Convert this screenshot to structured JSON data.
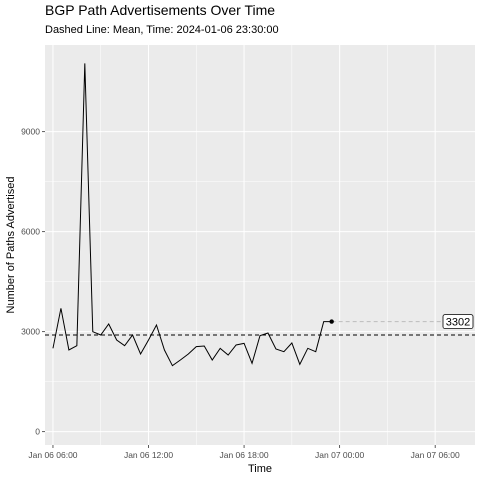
{
  "chart_data": {
    "type": "line",
    "title": "BGP Path Advertisements Over Time",
    "subtitle": "Dashed Line: Mean, Time: 2024-01-06 23:30:00",
    "xlabel": "Time",
    "ylabel": "Number of Paths Advertised",
    "x_ticks": [
      "Jan 06 06:00",
      "Jan 06 12:00",
      "Jan 06 18:00",
      "Jan 07 00:00",
      "Jan 07 06:00"
    ],
    "y_ticks": [
      "0",
      "3000",
      "6000",
      "9000"
    ],
    "xlim": [
      "2024-01-06 05:30",
      "2024-01-07 08:30"
    ],
    "ylim": [
      -400,
      11600
    ],
    "grid": true,
    "legend": "none",
    "mean": 2900,
    "last_point": {
      "x": "2024-01-06 23:30",
      "y": 3302
    },
    "callout_label": "3302",
    "series": [
      {
        "x": [
          "2024-01-06 06:00",
          "2024-01-06 06:30",
          "2024-01-06 07:00",
          "2024-01-06 07:30",
          "2024-01-06 08:00",
          "2024-01-06 08:30",
          "2024-01-06 09:00",
          "2024-01-06 09:30",
          "2024-01-06 10:00",
          "2024-01-06 10:30",
          "2024-01-06 11:00",
          "2024-01-06 11:30",
          "2024-01-06 12:00",
          "2024-01-06 12:30",
          "2024-01-06 13:00",
          "2024-01-06 13:30",
          "2024-01-06 14:00",
          "2024-01-06 14:30",
          "2024-01-06 15:00",
          "2024-01-06 15:30",
          "2024-01-06 16:00",
          "2024-01-06 16:30",
          "2024-01-06 17:00",
          "2024-01-06 17:30",
          "2024-01-06 18:00",
          "2024-01-06 18:30",
          "2024-01-06 19:00",
          "2024-01-06 19:30",
          "2024-01-06 20:00",
          "2024-01-06 20:30",
          "2024-01-06 21:00",
          "2024-01-06 21:30",
          "2024-01-06 22:00",
          "2024-01-06 22:30",
          "2024-01-06 23:00",
          "2024-01-06 23:30"
        ],
        "values": [
          2500,
          3700,
          2450,
          2580,
          11050,
          3000,
          2900,
          3230,
          2750,
          2580,
          2900,
          2330,
          2750,
          3200,
          2450,
          1980,
          2150,
          2330,
          2550,
          2570,
          2150,
          2500,
          2300,
          2600,
          2650,
          2050,
          2880,
          2960,
          2480,
          2400,
          2660,
          2020,
          2500,
          2400,
          3302,
          3302
        ]
      }
    ]
  },
  "style": {
    "panel_bg": "#ebebeb",
    "grid_major": "#ffffff",
    "line_color": "#000000",
    "mean_line_color": "#000000",
    "extension_color": "#bdbdbd"
  }
}
